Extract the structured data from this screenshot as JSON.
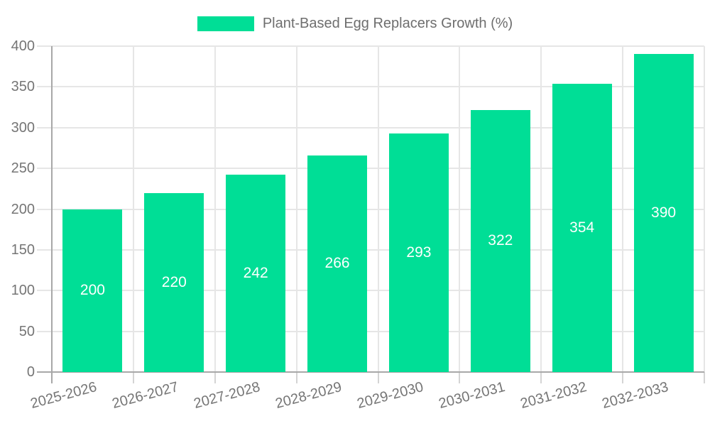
{
  "legend": {
    "label": "Plant-Based Egg Replacers Growth (%)"
  },
  "colors": {
    "bar": "#00de96",
    "axis_line": "#a8a8a8",
    "gridline": "#e6e6e6",
    "tick_mark": "#d4d4d4",
    "tick_text": "#757575",
    "value_label_text": "#ffffff",
    "legend_text": "#6e6e6e"
  },
  "chart_data": {
    "type": "bar",
    "title": "Plant-Based Egg Replacers Growth (%)",
    "categories": [
      "2025-2026",
      "2026-2027",
      "2027-2028",
      "2028-2029",
      "2029-2030",
      "2030-2031",
      "2031-2032",
      "2032-2033"
    ],
    "values": [
      200,
      220,
      242,
      266,
      293,
      322,
      354,
      390
    ],
    "xlabel": "",
    "ylabel": "",
    "ylim": [
      0,
      400
    ],
    "yticks": [
      0,
      50,
      100,
      150,
      200,
      250,
      300,
      350,
      400
    ],
    "grid": true,
    "legend_position": "top-center",
    "value_label_position": "inside-center",
    "x_tick_rotation_deg": -15
  }
}
